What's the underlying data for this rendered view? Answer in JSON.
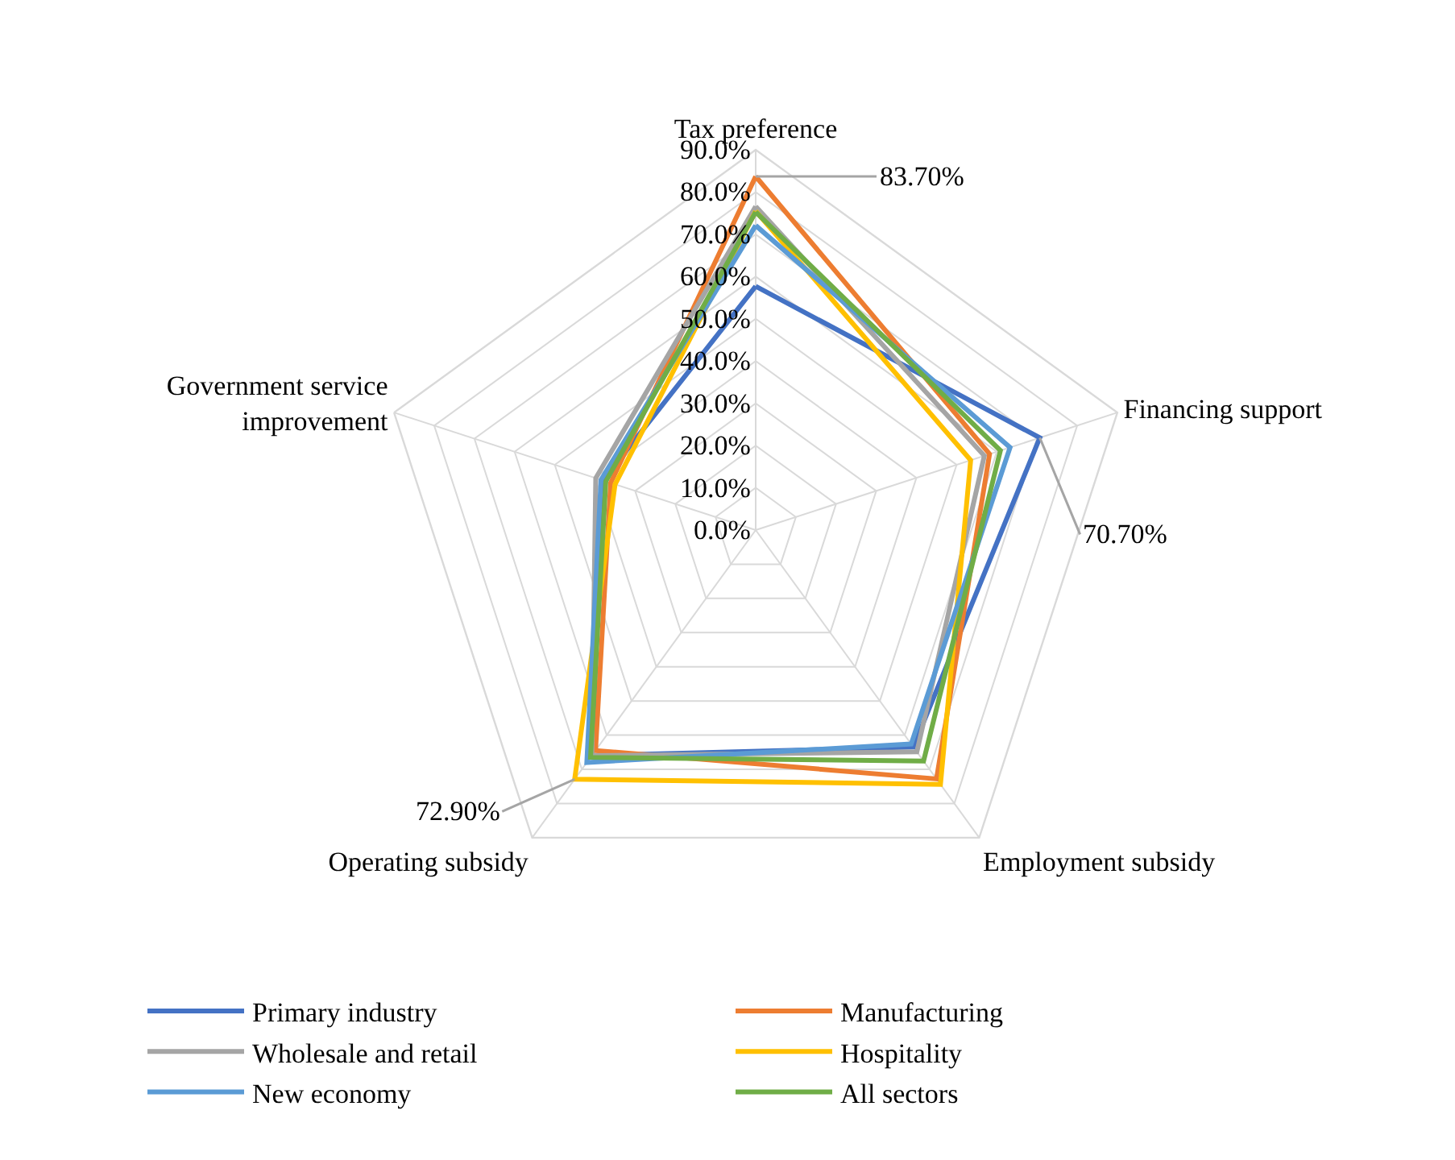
{
  "chart_data": {
    "type": "radar",
    "categories": [
      "Tax preference",
      "Financing support",
      "Employment subsidy",
      "Operating subsidy",
      "Government service improvement"
    ],
    "series": [
      {
        "name": "Primary industry",
        "color": "#4472c4",
        "values": [
          57.7,
          70.7,
          63.5,
          66.0,
          38.0
        ],
        "value_labels": [
          null,
          "70.70%",
          null,
          null,
          null
        ]
      },
      {
        "name": "Manufacturing",
        "color": "#ed7d31",
        "values": [
          83.7,
          58.2,
          72.8,
          64.5,
          36.1
        ],
        "value_labels": [
          "83.70%",
          null,
          null,
          null,
          null
        ]
      },
      {
        "name": "Wholesale and retail",
        "color": "#a5a5a5",
        "values": [
          76.6,
          56.9,
          64.9,
          66.0,
          39.8
        ]
      },
      {
        "name": "Hospitality",
        "color": "#ffc000",
        "values": [
          75.5,
          53.5,
          74.4,
          72.9,
          35.0
        ],
        "value_labels": [
          null,
          null,
          null,
          "72.90%",
          null
        ]
      },
      {
        "name": "New economy",
        "color": "#5b9bd5",
        "values": [
          72.1,
          63.3,
          62.6,
          68.0,
          38.5
        ]
      },
      {
        "name": "All sectors",
        "color": "#70ad47",
        "values": [
          75.3,
          60.9,
          67.6,
          66.5,
          37.3
        ]
      }
    ],
    "ylim": [
      0,
      90
    ],
    "yticks": [
      {
        "value": 0,
        "label": "0.0%"
      },
      {
        "value": 10,
        "label": "10.0%"
      },
      {
        "value": 20,
        "label": "20.0%"
      },
      {
        "value": 30,
        "label": "30.0%"
      },
      {
        "value": 40,
        "label": "40.0%"
      },
      {
        "value": 50,
        "label": "50.0%"
      },
      {
        "value": 60,
        "label": "60.0%"
      },
      {
        "value": 70,
        "label": "70.0%"
      },
      {
        "value": 80,
        "label": "80.0%"
      },
      {
        "value": 90,
        "label": "90.0%"
      }
    ],
    "grid": true,
    "legend": "bottom",
    "marker": "none",
    "line_style": "solid"
  }
}
